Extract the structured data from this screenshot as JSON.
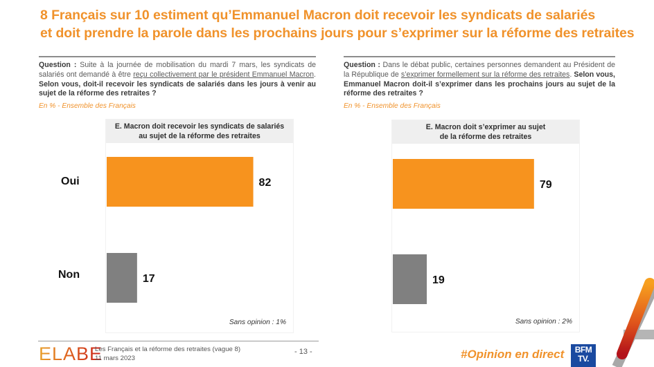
{
  "title": {
    "line1": "8 Français sur 10 estiment qu’Emmanuel Macron doit recevoir les syndicats de salariés",
    "line2": "et doit prendre la parole dans les prochains jours pour s’exprimer sur la réforme des retraites"
  },
  "questions": [
    {
      "label": "Question :",
      "text_plain": " Suite à la journée de mobilisation du mardi 7 mars, les syndicats de salariés ont demandé à être ",
      "text_underlined": "reçu collectivement par le président Emmanuel Macron",
      "text_after": ". ",
      "text_bold": "Selon vous, doit-il recevoir les syndicats de salariés dans les jours à venir au sujet de la réforme des retraites ?",
      "subtitle": "En % - Ensemble des Français"
    },
    {
      "label": "Question :",
      "text_plain": " Dans le débat public, certaines personnes demandent au Président de la République de ",
      "text_underlined": "s’exprimer formellement sur la réforme des retraites",
      "text_after": ". ",
      "text_bold": "Selon vous, Emmanuel Macron doit-il s’exprimer dans les prochains jours au sujet de la réforme des retraites ?",
      "subtitle": "En % - Ensemble des Français"
    }
  ],
  "chart_data": [
    {
      "type": "bar",
      "title": "E. Macron doit recevoir les syndicats de salariés au sujet de la réforme des retraites",
      "title_lines": [
        "E. Macron doit recevoir les syndicats de salariés",
        "au sujet de la réforme des retraites"
      ],
      "categories": [
        "Oui",
        "Non"
      ],
      "values": [
        82,
        17
      ],
      "colors": [
        "#f7931e",
        "#808080"
      ],
      "unit": "%",
      "xlim": [
        0,
        100
      ],
      "note": "Sans opinion : 1%"
    },
    {
      "type": "bar",
      "title": "E. Macron doit s’exprimer au sujet de la réforme des retraites",
      "title_lines": [
        "E. Macron doit s’exprimer au sujet",
        "de la réforme des retraites"
      ],
      "categories": [
        "Oui",
        "Non"
      ],
      "values": [
        79,
        19
      ],
      "colors": [
        "#f7931e",
        "#808080"
      ],
      "unit": "%",
      "xlim": [
        0,
        100
      ],
      "note": "Sans opinion : 2%"
    }
  ],
  "footer": {
    "brand": "ELABE",
    "study": "Les Français et la réforme des retraites (vague 8)",
    "date": "11 mars 2023",
    "page": "- 13 -",
    "hashtag": "#Opinion en direct",
    "channel_line1": "BFM",
    "channel_line2": "TV."
  },
  "colors": {
    "accent": "#f0922b",
    "bar_yes": "#f7931e",
    "bar_no": "#808080"
  }
}
